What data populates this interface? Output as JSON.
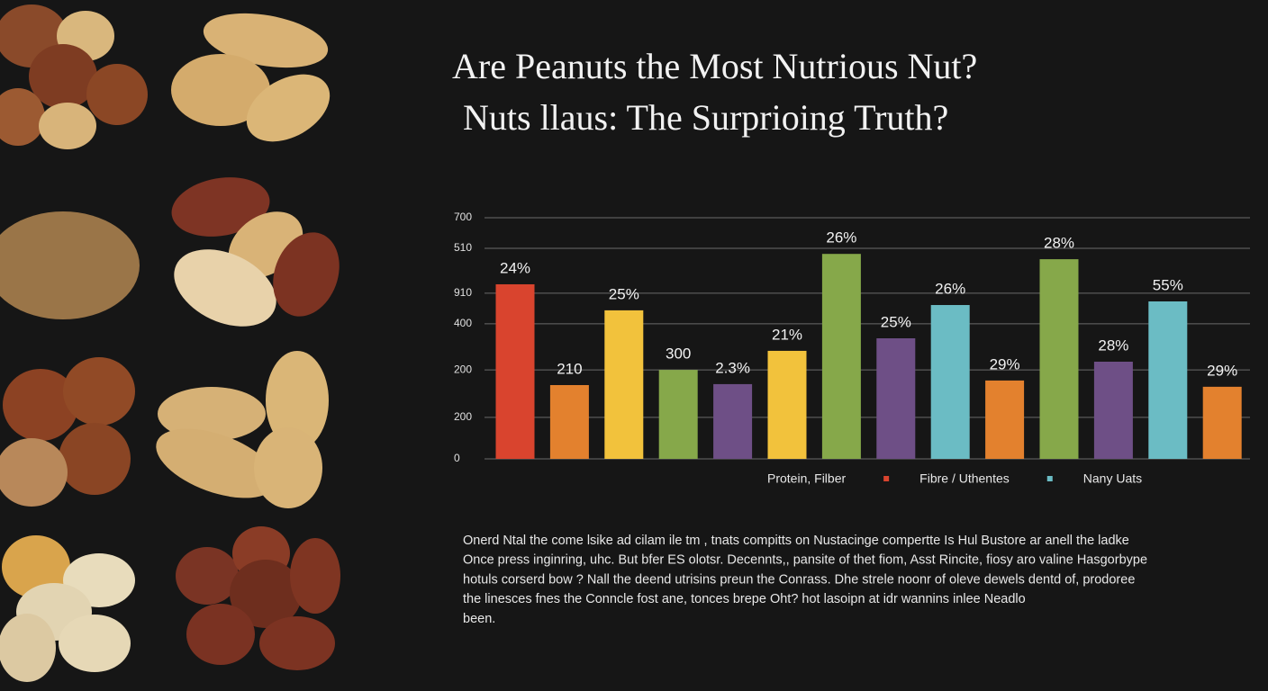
{
  "chart_data": {
    "type": "bar",
    "title": "Are Peanuts the Most Nutrious Nut?",
    "subtitle": "Nuts llaus: The Surprioing Truth?",
    "categories": [
      null,
      null,
      null,
      null,
      null,
      null,
      null,
      null,
      null,
      null,
      null,
      null,
      null,
      null
    ],
    "values": [
      72.4,
      30.6,
      61.6,
      36.9,
      31,
      44.8,
      85,
      50,
      63.8,
      32.5,
      82.8,
      40.3,
      65.3,
      29.9
    ],
    "colors": [
      "#d9442e",
      "#e3812e",
      "#f2c23c",
      "#86a84a",
      "#6e4f86",
      "#f2c23c",
      "#86a84a",
      "#6e4f86",
      "#6bbcc4",
      "#e3812e",
      "#86a84a",
      "#6e4f86",
      "#6bbcc4",
      "#e3812e"
    ],
    "annotations": [
      "24%",
      "210",
      "25%",
      "300",
      "2.3%",
      "21%",
      "26%",
      "25%",
      "26%",
      "29%",
      "28%",
      "28%",
      "55%",
      "29%"
    ],
    "ylim": [
      0,
      100
    ],
    "yticks": [
      0,
      {
        "value": 17.2,
        "label": "200"
      },
      {
        "value": 36.9,
        "label": "200"
      },
      {
        "value": 56,
        "label": "400"
      },
      {
        "value": 68.7,
        "label": "910"
      },
      {
        "value": 87.3,
        "label": "510"
      },
      {
        "value": 100,
        "label": "700"
      }
    ],
    "grid": true,
    "legend": [
      {
        "label": "Protein, Filber"
      },
      {
        "label": "Fibre / Uthentes",
        "color": "#d9442e"
      },
      {
        "label": "Nany Uats",
        "color": "#6bbcc4"
      }
    ],
    "paragraph": [
      "Onerd Ntal  the come lsike ad cilam ile tm , tnats compitts on Nustacinge compertte Is Hul Bustore ar anell  the ladke",
      "Once press inginring, uhc. But bfer ES olotsr. Decennts,,  pansite of thet fiom, Asst Rincite, fiosy aro valine Hasgorbype",
      "hotuls corserd  bow ? Nall   the deend utrisins preun the Conrass.  Dhe strele noonr of oleve dewels dentd of, prodoree",
      "the linesces fnes the Conncle fost ane, tonces brepe Oht? hot lasoipn at idr wannins inlee Neadlo",
      "been."
    ]
  }
}
